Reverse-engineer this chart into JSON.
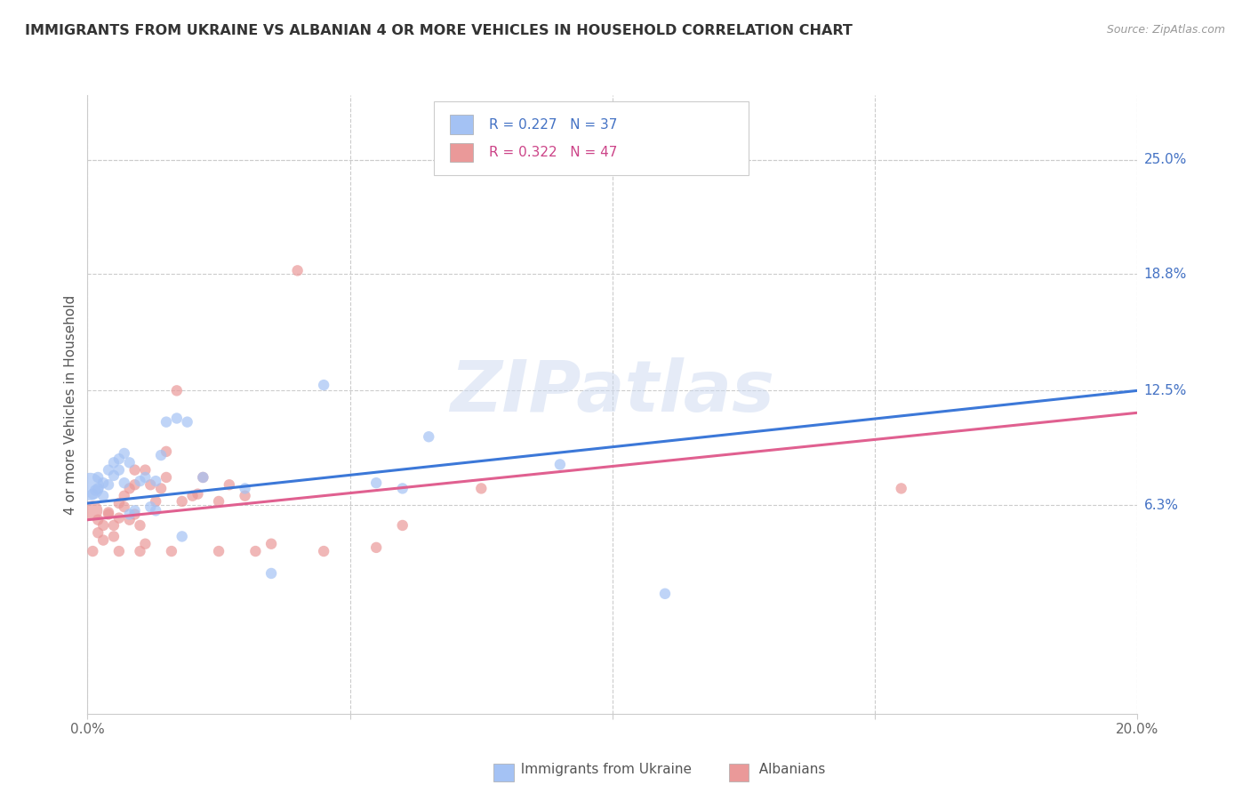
{
  "title": "IMMIGRANTS FROM UKRAINE VS ALBANIAN 4 OR MORE VEHICLES IN HOUSEHOLD CORRELATION CHART",
  "source": "Source: ZipAtlas.com",
  "ylabel_label": "4 or more Vehicles in Household",
  "right_ytick_labels": [
    "25.0%",
    "18.8%",
    "12.5%",
    "6.3%"
  ],
  "right_ytick_values": [
    0.25,
    0.188,
    0.125,
    0.063
  ],
  "xmin": 0.0,
  "xmax": 0.2,
  "ymin": -0.05,
  "ymax": 0.285,
  "ukraine_color": "#a4c2f4",
  "albania_color": "#ea9999",
  "ukraine_line_color": "#3c78d8",
  "albania_line_color": "#e06090",
  "legend_R_ukraine": "0.227",
  "legend_N_ukraine": "37",
  "legend_R_albania": "0.322",
  "legend_N_albania": "47",
  "ukraine_points": [
    [
      0.0005,
      0.073
    ],
    [
      0.001,
      0.069
    ],
    [
      0.0015,
      0.071
    ],
    [
      0.002,
      0.072
    ],
    [
      0.002,
      0.078
    ],
    [
      0.003,
      0.075
    ],
    [
      0.003,
      0.068
    ],
    [
      0.004,
      0.074
    ],
    [
      0.004,
      0.082
    ],
    [
      0.005,
      0.079
    ],
    [
      0.005,
      0.086
    ],
    [
      0.006,
      0.082
    ],
    [
      0.006,
      0.088
    ],
    [
      0.007,
      0.075
    ],
    [
      0.007,
      0.091
    ],
    [
      0.008,
      0.086
    ],
    [
      0.008,
      0.058
    ],
    [
      0.009,
      0.06
    ],
    [
      0.01,
      0.076
    ],
    [
      0.011,
      0.078
    ],
    [
      0.012,
      0.062
    ],
    [
      0.013,
      0.06
    ],
    [
      0.013,
      0.076
    ],
    [
      0.014,
      0.09
    ],
    [
      0.015,
      0.108
    ],
    [
      0.017,
      0.11
    ],
    [
      0.018,
      0.046
    ],
    [
      0.019,
      0.108
    ],
    [
      0.022,
      0.078
    ],
    [
      0.03,
      0.072
    ],
    [
      0.035,
      0.026
    ],
    [
      0.045,
      0.128
    ],
    [
      0.055,
      0.075
    ],
    [
      0.06,
      0.072
    ],
    [
      0.065,
      0.1
    ],
    [
      0.09,
      0.085
    ],
    [
      0.11,
      0.015
    ]
  ],
  "albania_points": [
    [
      0.001,
      0.06
    ],
    [
      0.001,
      0.038
    ],
    [
      0.002,
      0.048
    ],
    [
      0.002,
      0.055
    ],
    [
      0.003,
      0.052
    ],
    [
      0.003,
      0.044
    ],
    [
      0.004,
      0.058
    ],
    [
      0.004,
      0.059
    ],
    [
      0.005,
      0.052
    ],
    [
      0.005,
      0.046
    ],
    [
      0.006,
      0.038
    ],
    [
      0.006,
      0.056
    ],
    [
      0.006,
      0.064
    ],
    [
      0.007,
      0.068
    ],
    [
      0.007,
      0.062
    ],
    [
      0.008,
      0.072
    ],
    [
      0.008,
      0.055
    ],
    [
      0.009,
      0.074
    ],
    [
      0.009,
      0.058
    ],
    [
      0.009,
      0.082
    ],
    [
      0.01,
      0.038
    ],
    [
      0.01,
      0.052
    ],
    [
      0.011,
      0.042
    ],
    [
      0.011,
      0.082
    ],
    [
      0.012,
      0.074
    ],
    [
      0.013,
      0.065
    ],
    [
      0.014,
      0.072
    ],
    [
      0.015,
      0.078
    ],
    [
      0.015,
      0.092
    ],
    [
      0.016,
      0.038
    ],
    [
      0.017,
      0.125
    ],
    [
      0.018,
      0.065
    ],
    [
      0.02,
      0.068
    ],
    [
      0.021,
      0.069
    ],
    [
      0.022,
      0.078
    ],
    [
      0.025,
      0.065
    ],
    [
      0.025,
      0.038
    ],
    [
      0.027,
      0.074
    ],
    [
      0.03,
      0.068
    ],
    [
      0.032,
      0.038
    ],
    [
      0.035,
      0.042
    ],
    [
      0.04,
      0.19
    ],
    [
      0.045,
      0.038
    ],
    [
      0.055,
      0.04
    ],
    [
      0.06,
      0.052
    ],
    [
      0.075,
      0.072
    ],
    [
      0.155,
      0.072
    ]
  ],
  "ukraine_sizes": [
    500,
    80,
    80,
    80,
    80,
    80,
    80,
    80,
    80,
    80,
    80,
    80,
    80,
    80,
    80,
    80,
    80,
    80,
    80,
    80,
    80,
    80,
    80,
    80,
    80,
    80,
    80,
    80,
    80,
    80,
    80,
    80,
    80,
    80,
    80,
    80,
    80
  ],
  "albania_sizes": [
    250,
    80,
    80,
    80,
    80,
    80,
    80,
    80,
    80,
    80,
    80,
    80,
    80,
    80,
    80,
    80,
    80,
    80,
    80,
    80,
    80,
    80,
    80,
    80,
    80,
    80,
    80,
    80,
    80,
    80,
    80,
    80,
    80,
    80,
    80,
    80,
    80,
    80,
    80,
    80,
    80,
    80,
    80,
    80,
    80,
    80,
    80
  ],
  "watermark_text": "ZIPatlas",
  "grid_color": "#cccccc",
  "ukraine_regr": [
    0.0,
    0.2,
    0.064,
    0.125
  ],
  "albania_regr": [
    0.0,
    0.2,
    0.055,
    0.113
  ]
}
